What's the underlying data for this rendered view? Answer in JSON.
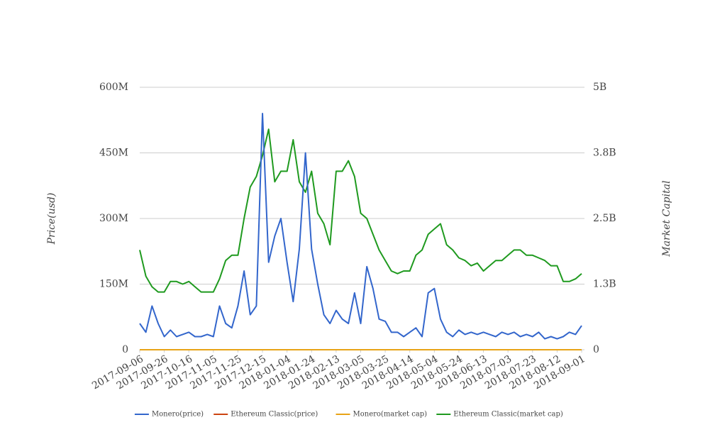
{
  "chart_data": {
    "type": "line",
    "y_label": "Price(usd)",
    "y2_label": "Market Capital",
    "x": [
      "2017-09-06",
      "2017-09-11",
      "2017-09-16",
      "2017-09-21",
      "2017-09-26",
      "2017-10-01",
      "2017-10-06",
      "2017-10-11",
      "2017-10-16",
      "2017-10-21",
      "2017-10-26",
      "2017-10-31",
      "2017-11-05",
      "2017-11-10",
      "2017-11-15",
      "2017-11-20",
      "2017-11-25",
      "2017-11-30",
      "2017-12-05",
      "2017-12-10",
      "2017-12-15",
      "2017-12-20",
      "2017-12-25",
      "2017-12-30",
      "2018-01-04",
      "2018-01-09",
      "2018-01-14",
      "2018-01-19",
      "2018-01-24",
      "2018-01-29",
      "2018-02-03",
      "2018-02-08",
      "2018-02-13",
      "2018-02-18",
      "2018-02-23",
      "2018-02-28",
      "2018-03-05",
      "2018-03-10",
      "2018-03-15",
      "2018-03-20",
      "2018-03-25",
      "2018-03-30",
      "2018-04-04",
      "2018-04-09",
      "2018-04-14",
      "2018-04-19",
      "2018-04-24",
      "2018-04-29",
      "2018-05-04",
      "2018-05-09",
      "2018-05-14",
      "2018-05-19",
      "2018-05-24",
      "2018-05-29",
      "2018-06-03",
      "2018-06-08",
      "2018-06-13",
      "2018-06-18",
      "2018-06-23",
      "2018-06-28",
      "2018-07-03",
      "2018-07-08",
      "2018-07-13",
      "2018-07-18",
      "2018-07-23",
      "2018-07-28",
      "2018-08-02",
      "2018-08-07",
      "2018-08-12",
      "2018-08-17",
      "2018-08-22",
      "2018-08-27",
      "2018-09-01"
    ],
    "xticks": [
      "2017-09-06",
      "2017-09-26",
      "2017-10-16",
      "2017-11-05",
      "2017-11-25",
      "2017-12-15",
      "2018-01-04",
      "2018-01-24",
      "2018-02-13",
      "2018-03-05",
      "2018-03-25",
      "2018-04-14",
      "2018-05-04",
      "2018-05-24",
      "2018-06-13",
      "2018-07-03",
      "2018-07-23",
      "2018-08-12",
      "2018-09-01"
    ],
    "ylim": [
      0,
      600000000.0
    ],
    "yticks": [
      0,
      {
        "value": 150000000.0,
        "label": "150M"
      },
      {
        "value": 300000000.0,
        "label": "300M"
      },
      {
        "value": 450000000.0,
        "label": "450M"
      },
      {
        "value": 600000000.0,
        "label": "600M"
      }
    ],
    "y2lim": [
      0,
      5000000000.0
    ],
    "y2ticks": [
      0,
      {
        "value": 1250000000.0,
        "label": "1.3B"
      },
      {
        "value": 2500000000.0,
        "label": "2.5B"
      },
      {
        "value": 3750000000.0,
        "label": "3.8B"
      },
      {
        "value": 5000000000.0,
        "label": "5B"
      }
    ],
    "grid": true,
    "legend": "bottom",
    "series": [
      {
        "name": "Monero(price)",
        "color": "#3366cc",
        "values": [
          60000000.0,
          40000000.0,
          100000000.0,
          60000000.0,
          30000000.0,
          45000000.0,
          30000000.0,
          35000000.0,
          40000000.0,
          30000000.0,
          30000000.0,
          35000000.0,
          30000000.0,
          100000000.0,
          60000000.0,
          50000000.0,
          100000000.0,
          180000000.0,
          80000000.0,
          100000000.0,
          540000000.0,
          200000000.0,
          260000000.0,
          300000000.0,
          200000000.0,
          110000000.0,
          230000000.0,
          450000000.0,
          230000000.0,
          150000000.0,
          80000000.0,
          60000000.0,
          90000000.0,
          70000000.0,
          60000000.0,
          130000000.0,
          60000000.0,
          190000000.0,
          140000000.0,
          70000000.0,
          65000000.0,
          40000000.0,
          40000000.0,
          30000000.0,
          40000000.0,
          50000000.0,
          30000000.0,
          130000000.0,
          140000000.0,
          70000000.0,
          40000000.0,
          30000000.0,
          45000000.0,
          35000000.0,
          40000000.0,
          35000000.0,
          40000000.0,
          35000000.0,
          30000000.0,
          40000000.0,
          35000000.0,
          40000000.0,
          30000000.0,
          35000000.0,
          30000000.0,
          40000000.0,
          25000000.0,
          30000000.0,
          25000000.0,
          30000000.0,
          40000000.0,
          35000000.0,
          55000000.0
        ]
      },
      {
        "name": "Ethereum Classic(price)",
        "color": "#cc4411",
        "values": [
          0,
          0,
          0,
          0,
          0,
          0,
          0,
          0,
          0,
          0,
          0,
          0,
          0,
          0,
          0,
          0,
          0,
          0,
          0,
          0,
          0,
          0,
          0,
          0,
          0,
          0,
          0,
          0,
          0,
          0,
          0,
          0,
          0,
          0,
          0,
          0,
          0,
          0,
          0,
          0,
          0,
          0,
          0,
          0,
          0,
          0,
          0,
          0,
          0,
          0,
          0,
          0,
          0,
          0,
          0,
          0,
          0,
          0,
          0,
          0,
          0,
          0,
          0,
          0,
          0,
          0,
          0,
          0,
          0,
          0,
          0,
          0,
          0
        ]
      },
      {
        "name": "Monero(market cap)",
        "color": "#e8a317",
        "axis": "y2",
        "values": [
          0,
          0,
          0,
          0,
          0,
          0,
          0,
          0,
          0,
          0,
          0,
          0,
          0,
          0,
          0,
          0,
          0,
          0,
          0,
          0,
          0,
          0,
          0,
          0,
          0,
          0,
          0,
          0,
          0,
          0,
          0,
          0,
          0,
          0,
          0,
          0,
          0,
          0,
          0,
          0,
          0,
          0,
          0,
          0,
          0,
          0,
          0,
          0,
          0,
          0,
          0,
          0,
          0,
          0,
          0,
          0,
          0,
          0,
          0,
          0,
          0,
          0,
          0,
          0,
          0,
          0,
          0,
          0,
          0,
          0,
          0,
          0,
          0
        ]
      },
      {
        "name": "Ethereum Classic(market cap)",
        "color": "#1f9a1f",
        "axis": "y2",
        "values": [
          1900000000.0,
          1400000000.0,
          1200000000.0,
          1100000000.0,
          1100000000.0,
          1300000000.0,
          1300000000.0,
          1250000000.0,
          1300000000.0,
          1200000000.0,
          1100000000.0,
          1100000000.0,
          1100000000.0,
          1350000000.0,
          1700000000.0,
          1800000000.0,
          1800000000.0,
          2500000000.0,
          3100000000.0,
          3300000000.0,
          3700000000.0,
          4200000000.0,
          3200000000.0,
          3400000000.0,
          3400000000.0,
          4000000000.0,
          3200000000.0,
          3000000000.0,
          3400000000.0,
          2600000000.0,
          2400000000.0,
          2000000000.0,
          3400000000.0,
          3400000000.0,
          3600000000.0,
          3300000000.0,
          2600000000.0,
          2500000000.0,
          2200000000.0,
          1900000000.0,
          1700000000.0,
          1500000000.0,
          1450000000.0,
          1500000000.0,
          1500000000.0,
          1800000000.0,
          1900000000.0,
          2200000000.0,
          2300000000.0,
          2400000000.0,
          2000000000.0,
          1900000000.0,
          1750000000.0,
          1700000000.0,
          1600000000.0,
          1650000000.0,
          1500000000.0,
          1600000000.0,
          1700000000.0,
          1700000000.0,
          1800000000.0,
          1900000000.0,
          1900000000.0,
          1800000000.0,
          1800000000.0,
          1750000000.0,
          1700000000.0,
          1600000000.0,
          1600000000.0,
          1300000000.0,
          1300000000.0,
          1350000000.0,
          1450000000.0
        ]
      }
    ]
  }
}
